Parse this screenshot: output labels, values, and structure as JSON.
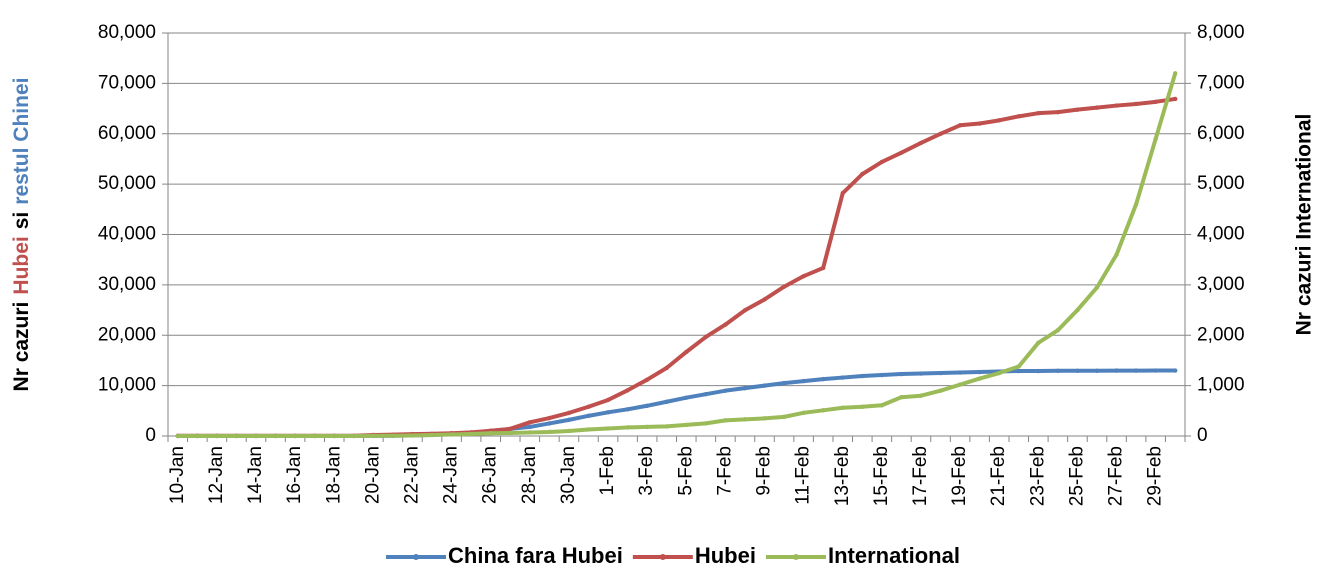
{
  "chart_data": {
    "type": "line",
    "y_label_parts": [
      {
        "text": "Nr cazuri",
        "color": "#000000"
      },
      {
        "text": "Hubei",
        "color": "#c0504d"
      },
      {
        "text": "si",
        "color": "#000000"
      },
      {
        "text": "restul Chinei",
        "color": "#4f81bd"
      }
    ],
    "y2_label": "Nr cazuri International",
    "y2_label_color": "#9bbb59",
    "categories": [
      "10-Jan",
      null,
      "12-Jan",
      null,
      "14-Jan",
      null,
      "16-Jan",
      null,
      "18-Jan",
      null,
      "20-Jan",
      null,
      "22-Jan",
      null,
      "24-Jan",
      null,
      "26-Jan",
      null,
      "28-Jan",
      null,
      "30-Jan",
      null,
      "1-Feb",
      null,
      "3-Feb",
      null,
      "5-Feb",
      null,
      "7-Feb",
      null,
      "9-Feb",
      null,
      "11-Feb",
      null,
      "13-Feb",
      null,
      "15-Feb",
      null,
      "17-Feb",
      null,
      "19-Feb",
      null,
      "21-Feb",
      null,
      "23-Feb",
      null,
      "25-Feb",
      null,
      "27-Feb",
      null,
      "29-Feb",
      null
    ],
    "series": [
      {
        "name": "China fara Hubei",
        "color": "#4f81bd",
        "axis": "y",
        "values": [
          0,
          0,
          0,
          0,
          0,
          0,
          0,
          0,
          0,
          4,
          20,
          40,
          131,
          200,
          380,
          600,
          1000,
          1400,
          1800,
          2500,
          3200,
          4000,
          4700,
          5300,
          6000,
          6800,
          7600,
          8300,
          9000,
          9500,
          10000,
          10500,
          10900,
          11300,
          11600,
          11900,
          12100,
          12300,
          12400,
          12500,
          12600,
          12700,
          12800,
          12900,
          12900,
          12950,
          12950,
          12950,
          12980,
          12980,
          13000,
          13000
        ]
      },
      {
        "name": "Hubei",
        "color": "#c0504d",
        "axis": "y",
        "values": [
          41,
          41,
          41,
          41,
          41,
          41,
          41,
          41,
          45,
          62,
          198,
          270,
          375,
          444,
          549,
          729,
          1052,
          1423,
          2714,
          3554,
          4586,
          5806,
          7153,
          9074,
          11177,
          13522,
          16678,
          19665,
          22112,
          24953,
          27100,
          29631,
          31728,
          33366,
          48206,
          51986,
          54406,
          56249,
          58182,
          59989,
          61682,
          62031,
          62662,
          63454,
          64084,
          64287,
          64786,
          65187,
          65596,
          65914,
          66337,
          66907
        ]
      },
      {
        "name": "International",
        "color": "#9bbb59",
        "axis": "y2",
        "values": [
          0,
          0,
          0,
          0,
          0,
          0,
          0,
          0,
          0,
          0,
          3,
          6,
          10,
          20,
          30,
          40,
          55,
          60,
          70,
          80,
          100,
          130,
          150,
          170,
          180,
          190,
          220,
          250,
          310,
          330,
          350,
          380,
          460,
          510,
          560,
          580,
          610,
          770,
          800,
          900,
          1020,
          1140,
          1250,
          1380,
          1850,
          2100,
          2500,
          2950,
          3600,
          4600,
          5900,
          7200
        ]
      }
    ],
    "ylim": [
      0,
      80000
    ],
    "yticks": [
      0,
      {
        "value": 10000,
        "label": "10,000"
      },
      {
        "value": 20000,
        "label": "20,000"
      },
      {
        "value": 30000,
        "label": "30,000"
      },
      {
        "value": 40000,
        "label": "40,000"
      },
      {
        "value": 50000,
        "label": "50,000"
      },
      {
        "value": 60000,
        "label": "60,000"
      },
      {
        "value": 70000,
        "label": "70,000"
      },
      {
        "value": 80000,
        "label": "80,000"
      }
    ],
    "y2lim": [
      0,
      8000
    ],
    "y2ticks": [
      0,
      {
        "value": 1000,
        "label": "1,000"
      },
      {
        "value": 2000,
        "label": "2,000"
      },
      {
        "value": 3000,
        "label": "3,000"
      },
      {
        "value": 4000,
        "label": "4,000"
      },
      {
        "value": 5000,
        "label": "5,000"
      },
      {
        "value": 6000,
        "label": "6,000"
      },
      {
        "value": 7000,
        "label": "7,000"
      },
      {
        "value": 8000,
        "label": "8,000"
      }
    ],
    "grid": true,
    "legend": "bottom"
  }
}
